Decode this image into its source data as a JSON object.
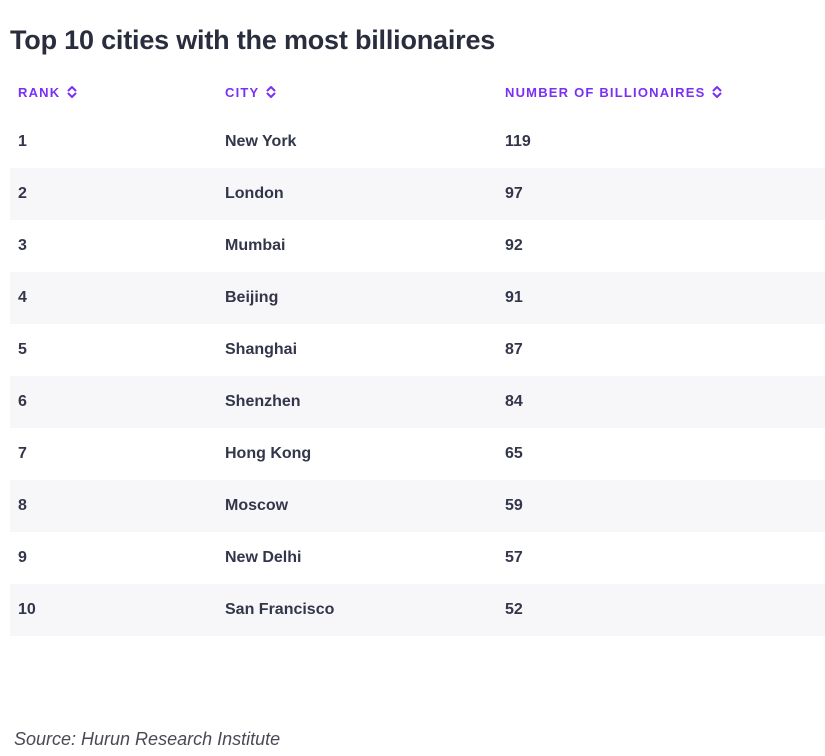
{
  "title": "Top 10 cities with the most billionaires",
  "columns": {
    "rank": "RANK",
    "city": "CITY",
    "number": "NUMBER OF BILLIONAIRES"
  },
  "icons": {
    "sort": "sort-up-down-icon"
  },
  "colors": {
    "accent": "#7a2ff5",
    "row_alt": "#f7f7f9",
    "title": "#2a2d3e"
  },
  "source": "Source: Hurun Research Institute",
  "chart_data": {
    "type": "table",
    "title": "Top 10 cities with the most billionaires",
    "columns": [
      "RANK",
      "CITY",
      "NUMBER OF BILLIONAIRES"
    ],
    "rows": [
      {
        "rank": "1",
        "city": "New York",
        "billionaires": "119"
      },
      {
        "rank": "2",
        "city": "London",
        "billionaires": "97"
      },
      {
        "rank": "3",
        "city": "Mumbai",
        "billionaires": "92"
      },
      {
        "rank": "4",
        "city": "Beijing",
        "billionaires": "91"
      },
      {
        "rank": "5",
        "city": "Shanghai",
        "billionaires": "87"
      },
      {
        "rank": "6",
        "city": "Shenzhen",
        "billionaires": "84"
      },
      {
        "rank": "7",
        "city": "Hong Kong",
        "billionaires": "65"
      },
      {
        "rank": "8",
        "city": "Moscow",
        "billionaires": "59"
      },
      {
        "rank": "9",
        "city": "New Delhi",
        "billionaires": "57"
      },
      {
        "rank": "10",
        "city": "San Francisco",
        "billionaires": "52"
      }
    ],
    "source": "Source: Hurun Research Institute"
  }
}
